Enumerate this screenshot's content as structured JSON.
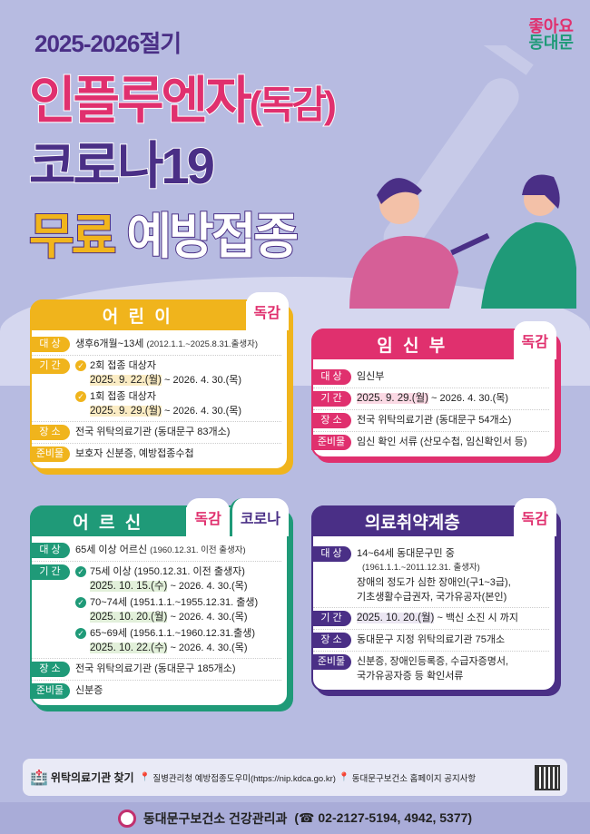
{
  "header": {
    "season": "2025-2026절기",
    "line1": "인플루엔자",
    "line1_paren": "(독감)",
    "line2": "코로나19",
    "line3_free": "무료",
    "line3_rest": "예방접종"
  },
  "logo": {
    "top": "좋아요",
    "bottom": "동대문"
  },
  "colors": {
    "yellow": "#f0b41c",
    "pink": "#e0306e",
    "green": "#1f9a78",
    "purple": "#4a2f86",
    "background": "#b7bbe1"
  },
  "children": {
    "title": "어 린 이",
    "tag": "독감",
    "target_label": "대 상",
    "target": "생후6개월~13세",
    "target_note": "(2012.1.1.~2025.8.31.출생자)",
    "period_label": "기 간",
    "periods": [
      {
        "group": "2회 접종 대상자",
        "dates": "2025. 9. 22.(월)",
        "end": " ~ 2026. 4. 30.(목)"
      },
      {
        "group": "1회 접종 대상자",
        "dates": "2025. 9. 29.(월)",
        "end": " ~ 2026. 4. 30.(목)"
      }
    ],
    "place_label": "장 소",
    "place": "전국 위탁의료기관 (동대문구 83개소)",
    "prep_label": "준비물",
    "prep": "보호자 신분증, 예방접종수첩"
  },
  "pregnant": {
    "title": "임 신 부",
    "tag": "독감",
    "target_label": "대 상",
    "target": "임신부",
    "period_label": "기 간",
    "dates": "2025. 9. 29.(월)",
    "end": " ~ 2026. 4. 30.(목)",
    "place_label": "장 소",
    "place": "전국 위탁의료기관 (동대문구 54개소)",
    "prep_label": "준비물",
    "prep": "임신 확인 서류 (산모수첩, 임신확인서 등)"
  },
  "elderly": {
    "title": "어 르 신",
    "tag": "독감",
    "tag2": "코로나",
    "target_label": "대 상",
    "target": "65세 이상 어르신",
    "target_note": "(1960.12.31. 이전 출생자)",
    "period_label": "기 간",
    "periods": [
      {
        "group": "75세 이상 (1950.12.31. 이전 출생자)",
        "dates": "2025. 10. 15.(수)",
        "end": " ~ 2026. 4. 30.(목)"
      },
      {
        "group": "70~74세 (1951.1.1.~1955.12.31. 출생)",
        "dates": "2025. 10. 20.(월)",
        "end": " ~ 2026. 4. 30.(목)"
      },
      {
        "group": "65~69세 (1956.1.1.~1960.12.31.출생)",
        "dates": "2025. 10. 22.(수)",
        "end": " ~ 2026. 4. 30.(목)"
      }
    ],
    "place_label": "장 소",
    "place": "전국 위탁의료기관 (동대문구 185개소)",
    "prep_label": "준비물",
    "prep": "신분증"
  },
  "vulnerable": {
    "title": "의료취약계층",
    "tag": "독감",
    "target_label": "대 상",
    "target_lines": [
      "14~64세 동대문구민 중",
      "(1961.1.1.~2011.12.31. 출생자)",
      "장애의 정도가 심한 장애인(구1~3급),",
      "기초생활수급권자, 국가유공자(본인)"
    ],
    "period_label": "기 간",
    "dates": "2025. 10. 20.(월)",
    "end": " ~ 백신 소진 시 까지",
    "place_label": "장 소",
    "place": "동대문구 지정 위탁의료기관 75개소",
    "prep_label": "준비물",
    "prep_lines": [
      "신분증, 장애인등록증, 수급자증명서,",
      "국가유공자증 등 확인서류"
    ]
  },
  "info": {
    "title": "위탁의료기관 찾기",
    "link1": "질병관리청 예방접종도우미(https://nip.kdca.go.kr)",
    "link2": "동대문구보건소 홈페이지 공지사항"
  },
  "footer": {
    "org": "동대문구보건소 건강관리과",
    "phone": "(☎ 02-2127-5194, 4942, 5377)"
  }
}
